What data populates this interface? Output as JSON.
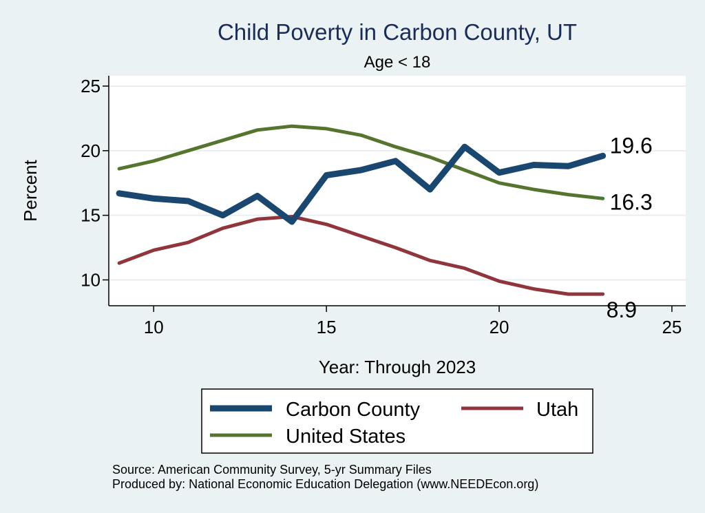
{
  "chart_data": {
    "type": "line",
    "title": "Child Poverty in Carbon County, UT",
    "subtitle": "Age < 18",
    "xlabel": "Year: Through 2023",
    "ylabel": "Percent",
    "xlim": [
      8.7,
      25.4
    ],
    "ylim": [
      8.0,
      25.8
    ],
    "xticks": [
      10,
      15,
      20,
      25
    ],
    "yticks": [
      10,
      15,
      20,
      25
    ],
    "x": [
      9,
      10,
      11,
      12,
      13,
      14,
      15,
      16,
      17,
      18,
      19,
      20,
      21,
      22,
      23
    ],
    "series": [
      {
        "name": "Carbon County",
        "color": "#1a476f",
        "values": [
          16.7,
          16.3,
          16.1,
          15.0,
          16.5,
          14.5,
          18.1,
          18.5,
          19.2,
          17.0,
          20.3,
          18.3,
          18.9,
          18.8,
          19.6
        ],
        "end_label": "19.6"
      },
      {
        "name": "Utah",
        "color": "#90353b",
        "values": [
          11.3,
          12.3,
          12.9,
          14.0,
          14.7,
          14.9,
          14.3,
          13.4,
          12.5,
          11.5,
          10.9,
          9.9,
          9.3,
          8.9,
          8.9
        ],
        "end_label": "8.9"
      },
      {
        "name": "United States",
        "color": "#55752f",
        "values": [
          18.6,
          19.2,
          20.0,
          20.8,
          21.6,
          21.9,
          21.7,
          21.2,
          20.3,
          19.5,
          18.5,
          17.5,
          17.0,
          16.6,
          16.3
        ],
        "end_label": "16.3"
      }
    ],
    "legend": {
      "placement": "bottom",
      "entries": [
        "Carbon County",
        "Utah",
        "United States"
      ]
    },
    "grid": true,
    "notes": [
      "Source: American Community Survey, 5-yr Summary Files",
      "Produced by: National Economic Education Delegation (www.NEEDEcon.org)"
    ]
  }
}
